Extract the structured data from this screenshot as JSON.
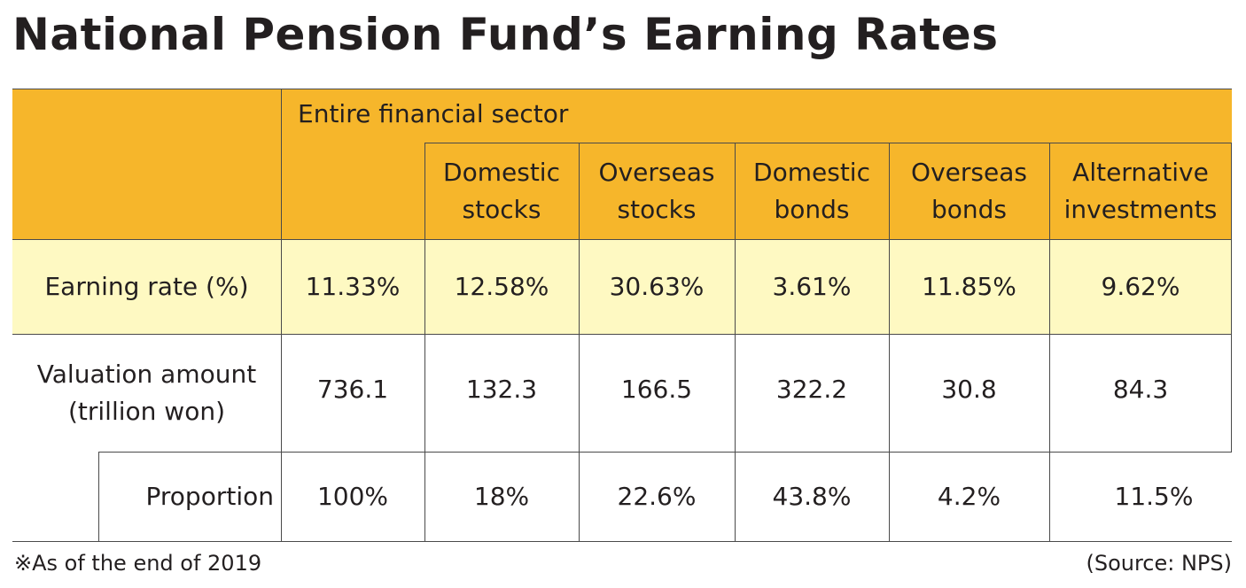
{
  "title": "National Pension Fund’s Earning Rates",
  "chart_data": {
    "type": "table",
    "title": "National Pension Fund’s Earning Rates",
    "group_header": "Entire financial sector",
    "columns": [
      "Domestic stocks",
      "Overseas stocks",
      "Domestic bonds",
      "Overseas bonds",
      "Alternative investments"
    ],
    "column_lines": [
      [
        "Domestic",
        "stocks"
      ],
      [
        "Overseas",
        "stocks"
      ],
      [
        "Domestic",
        "bonds"
      ],
      [
        "Overseas",
        "bonds"
      ],
      [
        "Alternative",
        "investments"
      ]
    ],
    "rows": [
      {
        "label_lines": [
          "Earning rate (%)"
        ],
        "total": "11.33%",
        "values": [
          "12.58%",
          "30.63%",
          "3.61%",
          "11.85%",
          "9.62%"
        ]
      },
      {
        "label_lines": [
          "Valuation amount",
          "(trillion won)"
        ],
        "total": "736.1",
        "values": [
          "132.3",
          "166.5",
          "322.2",
          "30.8",
          "84.3"
        ]
      },
      {
        "label_lines": [
          "Proportion"
        ],
        "total": "100%",
        "values": [
          "18%",
          "22.6%",
          "43.8%",
          "4.2%",
          "11.5%"
        ]
      }
    ]
  },
  "footnote": "※As of the end of 2019",
  "source": "(Source: NPS)",
  "colors": {
    "header": "#f6b62b",
    "highlight_row": "#fef9c2",
    "text": "#231f20",
    "lines": "#4a4a4a"
  }
}
